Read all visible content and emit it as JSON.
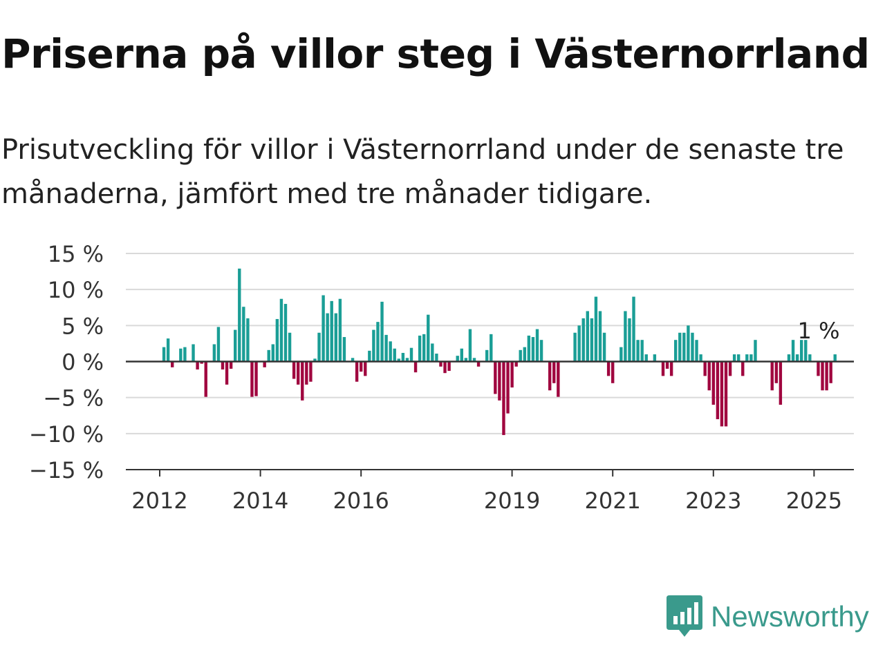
{
  "title": "Priserna på villor steg i Västernorrland",
  "subtitle": "Prisutveckling för villor i Västernorrland under de senaste tre månaderna, jämfört med tre månader tidigare.",
  "brand": {
    "name": "Newsworthy",
    "color": "#3a9a8c",
    "icon": "newsworthy-chart-icon"
  },
  "colors": {
    "positive": "#1a9e96",
    "negative": "#a0063f",
    "grid": "#d9d9d9",
    "axis": "#333333"
  },
  "chart_data": {
    "type": "bar",
    "start_date": "2012-02",
    "x_ticks": [
      {
        "label": "2012",
        "date": "2012-01"
      },
      {
        "label": "2014",
        "date": "2014-01"
      },
      {
        "label": "2016",
        "date": "2016-01"
      },
      {
        "label": "2019",
        "date": "2019-01"
      },
      {
        "label": "2021",
        "date": "2021-01"
      },
      {
        "label": "2023",
        "date": "2023-01"
      },
      {
        "label": "2025",
        "date": "2025-01"
      }
    ],
    "y_ticks": [
      {
        "value": 15,
        "label": "15 %"
      },
      {
        "value": 10,
        "label": "10 %"
      },
      {
        "value": 5,
        "label": "5 %"
      },
      {
        "value": 0,
        "label": "0 %"
      },
      {
        "value": -5,
        "label": "−5 %"
      },
      {
        "value": -10,
        "label": "−10 %"
      },
      {
        "value": -15,
        "label": "−15 %"
      }
    ],
    "ylim": [
      -15,
      15
    ],
    "grid": true,
    "unit": "%",
    "last_value_label": "1 %",
    "values": [
      2,
      3.2,
      -0.8,
      0,
      1.8,
      2,
      0,
      2.4,
      -1.1,
      -0.3,
      -4.9,
      0,
      2.4,
      4.8,
      -1.1,
      -3.2,
      -1,
      4.4,
      12.9,
      7.6,
      6,
      -4.9,
      -4.8,
      0,
      -0.8,
      1.6,
      2.4,
      5.9,
      8.7,
      8,
      4,
      -2.4,
      -3.2,
      -5.4,
      -3.2,
      -2.8,
      0.4,
      4,
      9.2,
      6.7,
      8.4,
      6.7,
      8.7,
      3.4,
      0,
      0.5,
      -2.8,
      -1.4,
      -2,
      1.5,
      4.4,
      5.5,
      8.3,
      3.7,
      2.8,
      1.8,
      0.4,
      1.2,
      0.5,
      1.9,
      -1.5,
      3.6,
      3.8,
      6.5,
      2.5,
      1.1,
      -0.7,
      -1.6,
      -1.3,
      0,
      0.8,
      1.8,
      0.5,
      4.5,
      0.5,
      -0.7,
      0,
      1.6,
      3.8,
      -4.5,
      -5.4,
      -10.2,
      -7.2,
      -3.6,
      -0.7,
      1.6,
      2,
      3.6,
      3.4,
      4.5,
      3,
      0,
      -4,
      -3,
      -4.9,
      0,
      0,
      0,
      4,
      5,
      6,
      7,
      6,
      9,
      7,
      4,
      -2,
      -3,
      0,
      2,
      7,
      6,
      9,
      3,
      3,
      1,
      0,
      1,
      0,
      -2,
      -1,
      -2,
      3,
      4,
      4,
      5,
      4,
      3,
      1,
      -2,
      -4,
      -6,
      -8,
      -9,
      -9,
      -2,
      1,
      1,
      -2,
      1,
      1,
      3,
      0,
      0,
      0,
      -4,
      -3,
      -6,
      0,
      1,
      3,
      1,
      3,
      3,
      1,
      0,
      -2,
      -4,
      -4,
      -3,
      1
    ]
  }
}
